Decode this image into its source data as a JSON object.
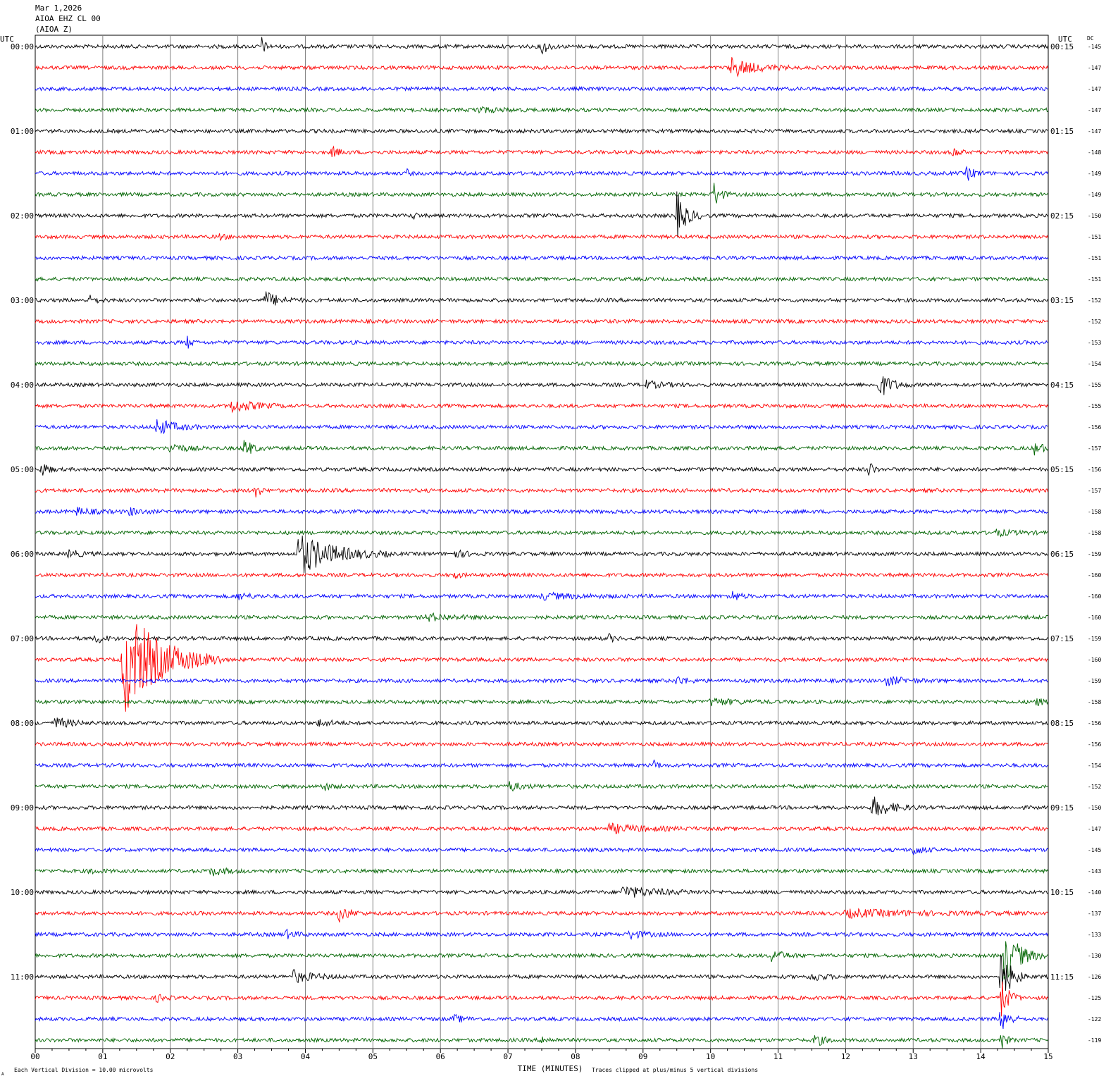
{
  "header": {
    "date": "Mar 1,2026",
    "station": "AIOA EHZ CL 00",
    "component": "(AIOA Z)"
  },
  "left_axis_label": "UTC",
  "right_axis_label": "UTC",
  "dc_label": "DC",
  "footer": {
    "scale_note": "Each Vertical Division =   10.00 microvolts",
    "clip_note": "Traces clipped at plus/minus 5 vertical divisions",
    "corner_mark": "A"
  },
  "colors": [
    "#000000",
    "#ff0000",
    "#0000ff",
    "#006400"
  ],
  "chart_data": {
    "type": "line",
    "title": "",
    "xlabel": "TIME (MINUTES)",
    "ylabel": "",
    "xlim": [
      0,
      15
    ],
    "x_ticks": [
      "00",
      "01",
      "02",
      "03",
      "04",
      "05",
      "06",
      "07",
      "08",
      "09",
      "10",
      "11",
      "12",
      "13",
      "14",
      "15"
    ],
    "grid": true,
    "left_time_labels": [
      "00:00",
      "01:00",
      "02:00",
      "03:00",
      "04:00",
      "05:00",
      "06:00",
      "07:00",
      "08:00",
      "09:00",
      "10:00",
      "11:00"
    ],
    "right_time_labels": [
      "00:15",
      "01:15",
      "02:15",
      "03:15",
      "04:15",
      "05:15",
      "06:15",
      "07:15",
      "08:15",
      "09:15",
      "10:15",
      "11:15"
    ],
    "dc_offsets": [
      "-145",
      "-147",
      "-147",
      "-147",
      "-147",
      "-148",
      "-149",
      "-149",
      "-150",
      "-151",
      "-151",
      "-151",
      "-152",
      "-152",
      "-153",
      "-154",
      "-155",
      "-155",
      "-156",
      "-157",
      "-156",
      "-157",
      "-158",
      "-158",
      "-159",
      "-160",
      "-160",
      "-160",
      "-159",
      "-160",
      "-159",
      "-158",
      "-156",
      "-156",
      "-154",
      "-152",
      "-150",
      "-147",
      "-145",
      "-143",
      "-140",
      "-137",
      "-133",
      "-130",
      "-126",
      "-125",
      "-122",
      "-119"
    ],
    "events": [
      {
        "trace": 0,
        "minute": 3.35,
        "amp": 1.4,
        "dur": 0.15
      },
      {
        "trace": 0,
        "minute": 7.5,
        "amp": 1.2,
        "dur": 0.25
      },
      {
        "trace": 1,
        "minute": 10.3,
        "amp": 1.4,
        "dur": 0.9
      },
      {
        "trace": 3,
        "minute": 6.5,
        "amp": 0.4,
        "dur": 0.9
      },
      {
        "trace": 5,
        "minute": 4.4,
        "amp": 0.7,
        "dur": 0.3
      },
      {
        "trace": 5,
        "minute": 13.6,
        "amp": 0.8,
        "dur": 0.2
      },
      {
        "trace": 6,
        "minute": 5.5,
        "amp": 0.6,
        "dur": 0.1
      },
      {
        "trace": 6,
        "minute": 13.8,
        "amp": 1.0,
        "dur": 0.3
      },
      {
        "trace": 7,
        "minute": 10.05,
        "amp": 2.0,
        "dur": 0.25
      },
      {
        "trace": 8,
        "minute": 9.5,
        "amp": 3.2,
        "dur": 0.4
      },
      {
        "trace": 8,
        "minute": 5.6,
        "amp": 0.5,
        "dur": 0.15
      },
      {
        "trace": 9,
        "minute": 2.7,
        "amp": 0.4,
        "dur": 0.3
      },
      {
        "trace": 12,
        "minute": 3.4,
        "amp": 1.2,
        "dur": 0.6
      },
      {
        "trace": 12,
        "minute": 0.8,
        "amp": 0.6,
        "dur": 0.3
      },
      {
        "trace": 14,
        "minute": 2.25,
        "amp": 0.9,
        "dur": 0.15
      },
      {
        "trace": 16,
        "minute": 9.0,
        "amp": 0.6,
        "dur": 0.7
      },
      {
        "trace": 16,
        "minute": 12.5,
        "amp": 1.8,
        "dur": 0.5
      },
      {
        "trace": 17,
        "minute": 2.9,
        "amp": 0.9,
        "dur": 0.9
      },
      {
        "trace": 18,
        "minute": 1.8,
        "amp": 1.2,
        "dur": 0.7
      },
      {
        "trace": 19,
        "minute": 3.1,
        "amp": 1.4,
        "dur": 0.3
      },
      {
        "trace": 19,
        "minute": 2.0,
        "amp": 0.8,
        "dur": 0.5
      },
      {
        "trace": 19,
        "minute": 14.8,
        "amp": 0.9,
        "dur": 0.4
      },
      {
        "trace": 20,
        "minute": 0.1,
        "amp": 1.1,
        "dur": 0.25
      },
      {
        "trace": 20,
        "minute": 12.35,
        "amp": 1.3,
        "dur": 0.15
      },
      {
        "trace": 21,
        "minute": 3.25,
        "amp": 1.8,
        "dur": 0.15
      },
      {
        "trace": 22,
        "minute": 0.6,
        "amp": 0.5,
        "dur": 0.7
      },
      {
        "trace": 22,
        "minute": 1.4,
        "amp": 0.5,
        "dur": 0.4
      },
      {
        "trace": 23,
        "minute": 14.2,
        "amp": 0.4,
        "dur": 0.8
      },
      {
        "trace": 24,
        "minute": 3.9,
        "amp": 3.0,
        "dur": 1.4
      },
      {
        "trace": 24,
        "minute": 6.2,
        "amp": 0.5,
        "dur": 0.5
      },
      {
        "trace": 24,
        "minute": 0.5,
        "amp": 0.5,
        "dur": 0.5
      },
      {
        "trace": 25,
        "minute": 6.2,
        "amp": 0.5,
        "dur": 0.2
      },
      {
        "trace": 26,
        "minute": 3.0,
        "amp": 0.5,
        "dur": 0.5
      },
      {
        "trace": 26,
        "minute": 7.5,
        "amp": 0.4,
        "dur": 1.5
      },
      {
        "trace": 26,
        "minute": 10.3,
        "amp": 0.9,
        "dur": 0.3
      },
      {
        "trace": 27,
        "minute": 5.8,
        "amp": 0.5,
        "dur": 1.0
      },
      {
        "trace": 28,
        "minute": 0.9,
        "amp": 0.6,
        "dur": 0.4
      },
      {
        "trace": 28,
        "minute": 8.5,
        "amp": 0.5,
        "dur": 0.2
      },
      {
        "trace": 29,
        "minute": 1.3,
        "amp": 8.0,
        "dur": 1.5
      },
      {
        "trace": 30,
        "minute": 9.5,
        "amp": 0.6,
        "dur": 0.4
      },
      {
        "trace": 30,
        "minute": 12.6,
        "amp": 0.6,
        "dur": 0.8
      },
      {
        "trace": 31,
        "minute": 10.0,
        "amp": 0.5,
        "dur": 1.0
      },
      {
        "trace": 31,
        "minute": 14.8,
        "amp": 0.5,
        "dur": 0.4
      },
      {
        "trace": 32,
        "minute": 0.3,
        "amp": 0.8,
        "dur": 0.6
      },
      {
        "trace": 32,
        "minute": 4.2,
        "amp": 0.5,
        "dur": 0.5
      },
      {
        "trace": 34,
        "minute": 9.15,
        "amp": 0.7,
        "dur": 0.2
      },
      {
        "trace": 35,
        "minute": 4.25,
        "amp": 0.6,
        "dur": 0.3
      },
      {
        "trace": 35,
        "minute": 7.0,
        "amp": 0.7,
        "dur": 0.5
      },
      {
        "trace": 36,
        "minute": 12.4,
        "amp": 1.5,
        "dur": 0.7
      },
      {
        "trace": 37,
        "minute": 8.5,
        "amp": 0.6,
        "dur": 1.4
      },
      {
        "trace": 38,
        "minute": 13.0,
        "amp": 0.7,
        "dur": 0.4
      },
      {
        "trace": 39,
        "minute": 2.6,
        "amp": 0.6,
        "dur": 0.6
      },
      {
        "trace": 39,
        "minute": 0.8,
        "amp": 0.3,
        "dur": 0.4
      },
      {
        "trace": 40,
        "minute": 8.7,
        "amp": 0.8,
        "dur": 1.4
      },
      {
        "trace": 41,
        "minute": 4.5,
        "amp": 1.2,
        "dur": 0.4
      },
      {
        "trace": 41,
        "minute": 12.0,
        "amp": 0.5,
        "dur": 3.0
      },
      {
        "trace": 42,
        "minute": 3.7,
        "amp": 0.6,
        "dur": 0.4
      },
      {
        "trace": 42,
        "minute": 8.8,
        "amp": 0.6,
        "dur": 0.6
      },
      {
        "trace": 43,
        "minute": 10.9,
        "amp": 0.8,
        "dur": 0.5
      },
      {
        "trace": 43,
        "minute": 14.35,
        "amp": 4.0,
        "dur": 0.6
      },
      {
        "trace": 44,
        "minute": 3.8,
        "amp": 0.9,
        "dur": 0.8
      },
      {
        "trace": 44,
        "minute": 11.5,
        "amp": 0.6,
        "dur": 0.5
      },
      {
        "trace": 44,
        "minute": 14.3,
        "amp": 4.0,
        "dur": 0.4
      },
      {
        "trace": 45,
        "minute": 1.8,
        "amp": 0.5,
        "dur": 0.3
      },
      {
        "trace": 45,
        "minute": 14.3,
        "amp": 3.0,
        "dur": 0.3
      },
      {
        "trace": 46,
        "minute": 6.2,
        "amp": 0.5,
        "dur": 0.4
      },
      {
        "trace": 46,
        "minute": 14.3,
        "amp": 2.0,
        "dur": 0.3
      },
      {
        "trace": 47,
        "minute": 11.55,
        "amp": 1.0,
        "dur": 0.3
      },
      {
        "trace": 47,
        "minute": 7.5,
        "amp": 0.5,
        "dur": 0.3
      },
      {
        "trace": 47,
        "minute": 14.3,
        "amp": 1.5,
        "dur": 0.2
      }
    ]
  }
}
